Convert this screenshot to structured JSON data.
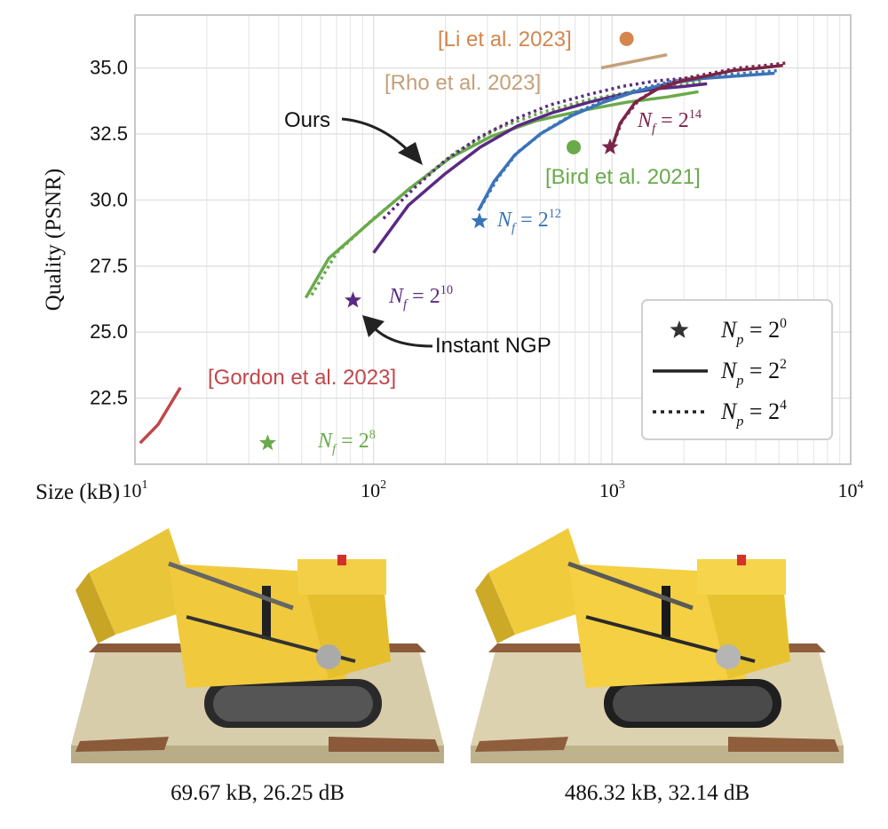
{
  "chart_data": {
    "type": "line",
    "ylabel": "Quality (PSNR)",
    "xlabel": "Size (kB)",
    "x_scale": "log",
    "xlim": [
      10,
      10000
    ],
    "ylim": [
      20.0,
      37.0
    ],
    "x_ticks": [
      10,
      100,
      1000,
      10000
    ],
    "x_tick_labels": [
      {
        "base": "10",
        "exp": "1"
      },
      {
        "base": "10",
        "exp": "2"
      },
      {
        "base": "10",
        "exp": "3"
      },
      {
        "base": "10",
        "exp": "4"
      }
    ],
    "y_ticks": [
      "22.5",
      "25.0",
      "27.5",
      "30.0",
      "32.5",
      "35.0"
    ],
    "grid": true,
    "legend": {
      "placement": "lower-right",
      "entries": [
        {
          "marker": "star",
          "prefix": "N",
          "sub": "p",
          "eq": " = 2",
          "exp": "0"
        },
        {
          "marker": "solid",
          "prefix": "N",
          "sub": "p",
          "eq": " = 2",
          "exp": "2"
        },
        {
          "marker": "dotted",
          "prefix": "N",
          "sub": "p",
          "eq": " = 2",
          "exp": "4"
        }
      ]
    },
    "series": [
      {
        "key": "np4_f8",
        "color": "#6aaa4b",
        "style": "dotted",
        "x": [
          55,
          70,
          100,
          150,
          220,
          330,
          500,
          800,
          1200,
          1800,
          2400
        ],
        "y": [
          26.4,
          28.0,
          29.3,
          30.6,
          31.8,
          32.7,
          33.3,
          33.8,
          34.1,
          34.3,
          34.5
        ]
      },
      {
        "key": "np2_f8",
        "color": "#6aaa4b",
        "style": "solid",
        "x": [
          52,
          65,
          95,
          140,
          210,
          310,
          480,
          760,
          1150,
          1700,
          2300
        ],
        "y": [
          26.3,
          27.8,
          29.1,
          30.4,
          31.6,
          32.4,
          33.0,
          33.4,
          33.7,
          33.9,
          34.1
        ]
      },
      {
        "key": "np4_f10",
        "color": "#5a2a82",
        "style": "dotted",
        "x": [
          110,
          150,
          200,
          280,
          400,
          550,
          800,
          1100,
          1500,
          2000,
          2700
        ],
        "y": [
          29.3,
          30.5,
          31.5,
          32.4,
          33.1,
          33.6,
          34.0,
          34.3,
          34.5,
          34.6,
          34.7
        ]
      },
      {
        "key": "np2_f10",
        "color": "#5a2a82",
        "style": "solid",
        "x": [
          100,
          140,
          200,
          280,
          400,
          560,
          800,
          1100,
          1500,
          2000,
          2500
        ],
        "y": [
          28.0,
          29.8,
          31.0,
          32.0,
          32.8,
          33.3,
          33.7,
          34.0,
          34.2,
          34.3,
          34.4
        ]
      },
      {
        "key": "np4_f12",
        "color": "#3a74b7",
        "style": "dotted",
        "x": [
          280,
          330,
          400,
          520,
          700,
          950,
          1300,
          1800,
          2600,
          3600,
          5000
        ],
        "y": [
          29.7,
          30.8,
          31.8,
          32.6,
          33.3,
          33.8,
          34.2,
          34.5,
          34.7,
          34.8,
          34.9
        ]
      },
      {
        "key": "np2_f12",
        "color": "#3a74b7",
        "style": "solid",
        "x": [
          275,
          320,
          390,
          500,
          680,
          920,
          1250,
          1700,
          2400,
          3400,
          4800
        ],
        "y": [
          29.6,
          30.7,
          31.7,
          32.5,
          33.2,
          33.7,
          34.1,
          34.4,
          34.6,
          34.7,
          34.8
        ]
      },
      {
        "key": "np4_f14",
        "color": "#7a2548",
        "style": "dotted",
        "x": [
          1000,
          1100,
          1300,
          1600,
          2000,
          2600,
          3400,
          4400,
          5500
        ],
        "y": [
          32.0,
          33.0,
          33.8,
          34.3,
          34.6,
          34.8,
          35.0,
          35.1,
          35.2
        ]
      },
      {
        "key": "np2_f14",
        "color": "#7a2548",
        "style": "solid",
        "x": [
          990,
          1080,
          1250,
          1550,
          1950,
          2500,
          3200,
          4200,
          5200
        ],
        "y": [
          31.9,
          32.9,
          33.7,
          34.2,
          34.5,
          34.7,
          34.9,
          35.0,
          35.1
        ]
      },
      {
        "key": "gordon",
        "color": "#c0474b",
        "style": "solid",
        "x": [
          10.5,
          12.5,
          15.5
        ],
        "y": [
          20.8,
          21.5,
          22.9
        ]
      },
      {
        "key": "rho",
        "color": "#c4a078",
        "style": "solid",
        "x": [
          900,
          1700
        ],
        "y": [
          35.0,
          35.5
        ]
      }
    ],
    "markers": [
      {
        "key": "star_f8",
        "shape": "star",
        "color": "#6aaa4b",
        "x": 36,
        "y": 20.8
      },
      {
        "key": "star_f10",
        "shape": "star",
        "color": "#5a2a82",
        "x": 82,
        "y": 26.2
      },
      {
        "key": "star_f12",
        "shape": "star",
        "color": "#3a74b7",
        "x": 278,
        "y": 29.2
      },
      {
        "key": "star_f14",
        "shape": "star",
        "color": "#7a2548",
        "x": 980,
        "y": 32.0
      },
      {
        "key": "li_point",
        "shape": "circle",
        "color": "#d4864d",
        "x": 1150,
        "y": 36.1
      },
      {
        "key": "bird_point",
        "shape": "circle",
        "color": "#6aaa4b",
        "x": 690,
        "y": 32.0
      }
    ],
    "annotations": [
      {
        "key": "nf8",
        "prefix": "N",
        "sub": "f",
        "eq": " = 2",
        "exp": "8",
        "color": "#6aaa4b"
      },
      {
        "key": "nf10",
        "prefix": "N",
        "sub": "f",
        "eq": " = 2",
        "exp": "10",
        "color": "#5a2a82"
      },
      {
        "key": "nf12",
        "prefix": "N",
        "sub": "f",
        "eq": " = 2",
        "exp": "12",
        "color": "#3a74b7"
      },
      {
        "key": "nf14",
        "prefix": "N",
        "sub": "f",
        "eq": " = 2",
        "exp": "14",
        "color": "#7a2548"
      },
      {
        "key": "gordon_label",
        "text": "[Gordon et al. 2023]",
        "color": "#c0474b"
      },
      {
        "key": "li_label",
        "text": "[Li et al. 2023]",
        "color": "#d4864d"
      },
      {
        "key": "rho_label",
        "text": "[Rho et al. 2023]",
        "color": "#c4a078"
      },
      {
        "key": "bird_label",
        "text": "[Bird et al. 2021]",
        "color": "#6aaa4b"
      },
      {
        "key": "ours_label",
        "text": "Ours",
        "color": "#111111"
      },
      {
        "key": "ngp_label",
        "text": "Instant NGP",
        "color": "#111111"
      }
    ]
  },
  "renders": {
    "left_caption": "69.67 kB, 26.25 dB",
    "right_caption": "486.32 kB, 32.14 dB"
  }
}
